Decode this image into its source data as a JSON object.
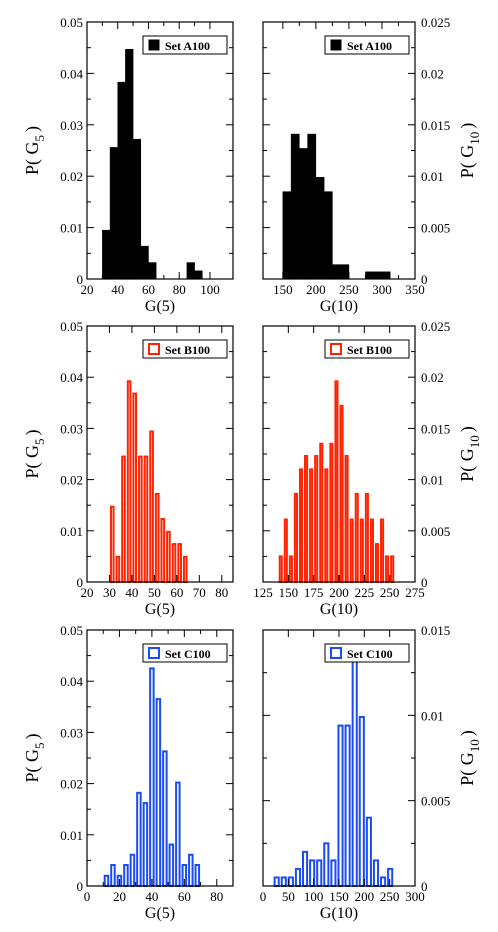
{
  "chart_data": [
    {
      "type": "bar",
      "legend": "Set A100",
      "color": "#000000",
      "filled": true,
      "xlabel": "G(5)",
      "ylabel": "P( G",
      "ylabel_sub": "5",
      "ylabel_close": ")",
      "ylabel_side": "left",
      "xlim": [
        20,
        115
      ],
      "ylim": [
        0,
        0.05
      ],
      "xticks": [
        20,
        30,
        40,
        50,
        60,
        70,
        80,
        90,
        100
      ],
      "xtick_labels": [
        "20",
        "",
        "40",
        "",
        "60",
        "",
        "80",
        "",
        "100"
      ],
      "yticks": [
        "0",
        "0.01",
        "0.02",
        "0.03",
        "0.04",
        "0.05"
      ],
      "bin_width": 5,
      "bin_left": [
        30,
        35,
        40,
        45,
        50,
        55,
        60,
        65,
        70,
        75,
        80,
        85,
        90,
        95
      ],
      "values": [
        0.0095,
        0.0256,
        0.0383,
        0.0447,
        0.0272,
        0.0064,
        0.0032,
        0,
        0,
        0,
        0,
        0.0032,
        0.0016,
        0
      ]
    },
    {
      "type": "bar",
      "legend": "Set A100",
      "color": "#000000",
      "filled": true,
      "xlabel": "G(10)",
      "ylabel": "P( G",
      "ylabel_sub": "10",
      "ylabel_close": ")",
      "ylabel_side": "right",
      "xlim": [
        120,
        350
      ],
      "ylim": [
        0,
        0.025
      ],
      "xticks": [
        150,
        175,
        200,
        225,
        250,
        275,
        300,
        325,
        350
      ],
      "xtick_labels": [
        "150",
        "",
        "200",
        "",
        "250",
        "",
        "300",
        "",
        "350"
      ],
      "yticks": [
        "0",
        "0.005",
        "0.01",
        "0.015",
        "0.02",
        "0.025"
      ],
      "bin_width": 12.5,
      "bin_left": [
        150,
        162.5,
        175,
        187.5,
        200,
        212.5,
        225,
        237.5,
        250,
        262.5,
        275,
        287.5,
        300,
        312.5
      ],
      "values": [
        0.0085,
        0.0141,
        0.0127,
        0.0141,
        0.0099,
        0.0085,
        0.0014,
        0.0014,
        0,
        0,
        0.0007,
        0.0007,
        0.0007,
        0
      ]
    },
    {
      "type": "bar",
      "legend": "Set B100",
      "color": "#ff2200",
      "filled": false,
      "xlabel": "G(5)",
      "ylabel": "P( G",
      "ylabel_sub": "5",
      "ylabel_close": ")",
      "ylabel_side": "left",
      "xlim": [
        20,
        85
      ],
      "ylim": [
        0,
        0.05
      ],
      "xticks": [
        20,
        30,
        40,
        50,
        60,
        70,
        80
      ],
      "xtick_labels": [
        "20",
        "30",
        "40",
        "50",
        "60",
        "70",
        "80"
      ],
      "yticks": [
        "0",
        "0.01",
        "0.02",
        "0.03",
        "0.04",
        "0.05"
      ],
      "bin_width": 2.5,
      "bin_left": [
        30,
        32.5,
        35,
        37.5,
        40,
        42.5,
        45,
        47.5,
        50,
        52.5,
        55,
        57.5,
        60,
        62.5,
        65,
        67.5,
        70,
        72.5,
        75,
        77.5,
        80
      ],
      "values": [
        0.0147,
        0.0049,
        0.0245,
        0.0392,
        0.0368,
        0.0245,
        0.0245,
        0.0294,
        0.0172,
        0.0123,
        0.0098,
        0.0074,
        0.0074,
        0.0049,
        0,
        0,
        0,
        0,
        0,
        0,
        0
      ]
    },
    {
      "type": "bar",
      "legend": "Set B100",
      "color": "#ff2200",
      "filled": false,
      "xlabel": "G(10)",
      "ylabel": "P( G",
      "ylabel_sub": "10",
      "ylabel_close": ")",
      "ylabel_side": "right",
      "xlim": [
        125,
        275
      ],
      "ylim": [
        0,
        0.025
      ],
      "xticks": [
        125,
        150,
        175,
        200,
        225,
        250,
        275
      ],
      "xtick_labels": [
        "125",
        "150",
        "175",
        "200",
        "225",
        "250",
        "275"
      ],
      "yticks": [
        "0",
        "0.005",
        "0.01",
        "0.015",
        "0.02",
        "0.025"
      ],
      "bin_width": 5,
      "bin_left": [
        140,
        145,
        150,
        155,
        160,
        165,
        170,
        175,
        180,
        185,
        190,
        195,
        200,
        205,
        210,
        215,
        220,
        225,
        230,
        235,
        240,
        245,
        250
      ],
      "values": [
        0.0025,
        0.0061,
        0.0025,
        0.0086,
        0.011,
        0.0123,
        0.011,
        0.0123,
        0.0135,
        0.011,
        0.0135,
        0.0196,
        0.0172,
        0.0123,
        0.0061,
        0.0086,
        0.0061,
        0.0086,
        0.0061,
        0.0037,
        0.0061,
        0.0025,
        0.0025
      ]
    },
    {
      "type": "bar",
      "legend": "Set C100",
      "color": "#1a4cf2",
      "filled": false,
      "xlabel": "G(5)",
      "ylabel": "P( G",
      "ylabel_sub": "5",
      "ylabel_close": ")",
      "ylabel_side": "left",
      "xlim": [
        0,
        90
      ],
      "ylim": [
        0,
        0.05
      ],
      "xticks": [
        0,
        10,
        20,
        30,
        40,
        50,
        60,
        70,
        80,
        90
      ],
      "xtick_labels": [
        "0",
        "",
        "20",
        "",
        "40",
        "",
        "60",
        "",
        "80",
        ""
      ],
      "yticks": [
        "0",
        "0.01",
        "0.02",
        "0.03",
        "0.04",
        "0.05"
      ],
      "bin_width": 4,
      "bin_left": [
        10,
        14,
        18,
        22,
        26,
        30,
        34,
        38,
        42,
        46,
        50,
        54,
        58,
        62,
        66,
        70,
        74,
        78
      ],
      "values": [
        0.002,
        0.0041,
        0.002,
        0.0041,
        0.0061,
        0.0182,
        0.0162,
        0.0425,
        0.0365,
        0.0263,
        0.0081,
        0.0202,
        0.0041,
        0.0061,
        0.0041,
        0,
        0,
        0
      ]
    },
    {
      "type": "bar",
      "legend": "Set C100",
      "color": "#1a4cf2",
      "filled": false,
      "xlabel": "G(10)",
      "ylabel": "P( G",
      "ylabel_sub": "10",
      "ylabel_close": ")",
      "ylabel_side": "right",
      "xlim": [
        0,
        300
      ],
      "ylim": [
        0,
        0.015
      ],
      "xticks": [
        0,
        50,
        100,
        150,
        200,
        250,
        300
      ],
      "xtick_labels": [
        "0",
        "50",
        "100",
        "150",
        "200",
        "250",
        "300"
      ],
      "yticks": [
        "0",
        "0.005",
        "0.01",
        "0.015"
      ],
      "bin_width": 14,
      "bin_left": [
        20,
        34,
        48,
        62,
        76,
        90,
        104,
        118,
        132,
        146,
        160,
        174,
        188,
        202,
        216,
        230,
        244,
        258
      ],
      "values": [
        0.0005,
        0.0005,
        0.0005,
        0.001,
        0.002,
        0.0015,
        0.0015,
        0.0025,
        0.0015,
        0.0094,
        0.0094,
        0.0133,
        0.0099,
        0.004,
        0.0015,
        0.0005,
        0.001,
        0
      ]
    }
  ]
}
